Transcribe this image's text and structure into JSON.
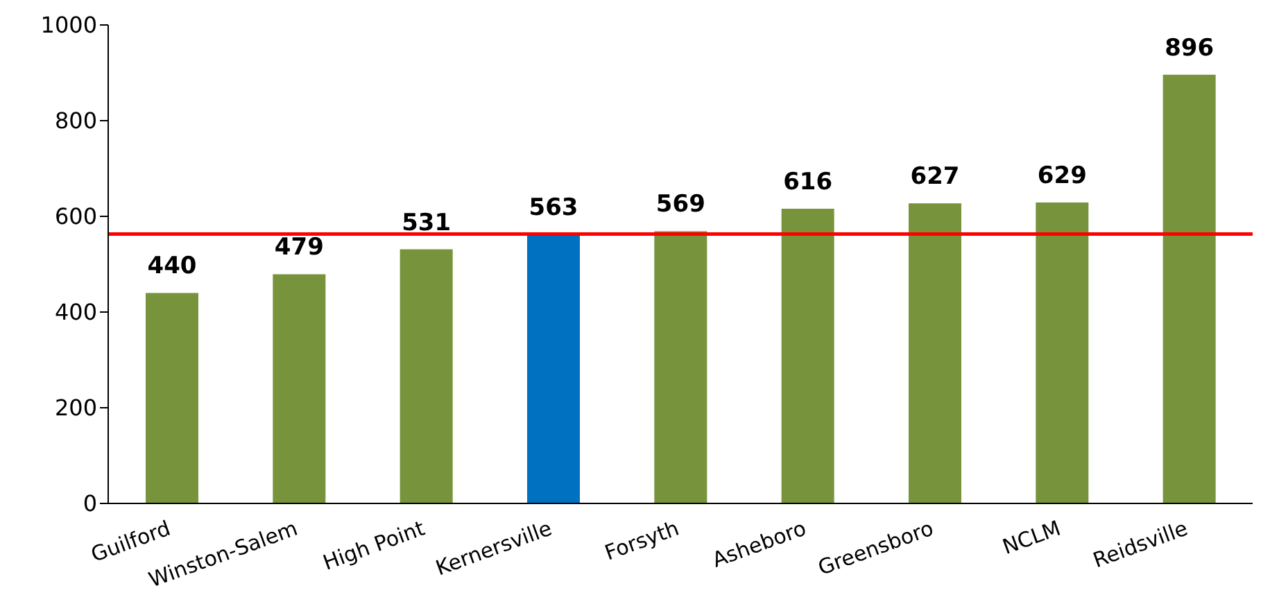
{
  "chart_data": {
    "type": "bar",
    "categories": [
      "Guilford",
      "Winston-Salem",
      "High Point",
      "Kernersville",
      "Forsyth",
      "Asheboro",
      "Greensboro",
      "NCLM",
      "Reidsville"
    ],
    "values": [
      440,
      479,
      531,
      563,
      569,
      616,
      627,
      629,
      896
    ],
    "colors": [
      "#77933c",
      "#77933c",
      "#77933c",
      "#0070c0",
      "#77933c",
      "#77933c",
      "#77933c",
      "#77933c",
      "#77933c"
    ],
    "ylim": [
      0,
      1000
    ],
    "yticks": [
      0,
      200,
      400,
      600,
      800,
      1000
    ],
    "grid": false,
    "data_labels": true,
    "ref_lines": [
      {
        "axis": "y",
        "value": 563,
        "color": "#ff0000"
      }
    ]
  }
}
